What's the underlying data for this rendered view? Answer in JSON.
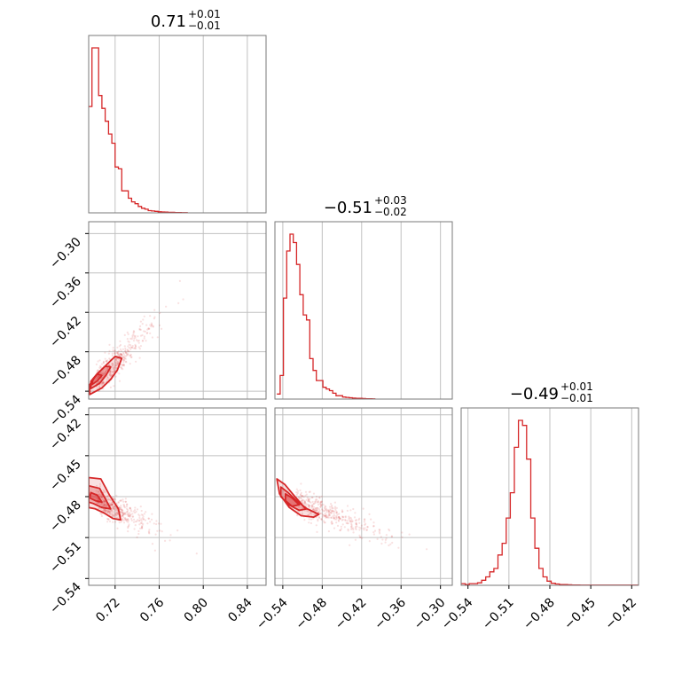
{
  "chart_data": {
    "type": "corner",
    "color": "#d62728",
    "grid": true,
    "params": [
      {
        "title_main": "0.71",
        "title_sup": "+0.01",
        "title_sub": "−0.01",
        "range": [
          0.696,
          0.857
        ],
        "ticks": [
          0.72,
          0.76,
          0.8,
          0.84
        ],
        "tick_labels": [
          "0.72",
          "0.76",
          "0.80",
          "0.84"
        ],
        "hist": {
          "edges_start": 0.696,
          "bin_width": 0.003,
          "counts": [
            0.58,
            0.9,
            0.9,
            0.64,
            0.57,
            0.5,
            0.43,
            0.38,
            0.25,
            0.24,
            0.12,
            0.12,
            0.08,
            0.06,
            0.05,
            0.035,
            0.025,
            0.02,
            0.012,
            0.01,
            0.008,
            0.006,
            0.005,
            0.004,
            0.003,
            0.003,
            0.002,
            0.002,
            0.001,
            0.001
          ]
        }
      },
      {
        "title_main": "−0.51",
        "title_sup": "+0.03",
        "title_sub": "−0.02",
        "range": [
          -0.552,
          -0.282
        ],
        "ticks": [
          -0.54,
          -0.48,
          -0.42,
          -0.36,
          -0.3
        ],
        "tick_labels": [
          "−0.54",
          "−0.48",
          "−0.42",
          "−0.36",
          "−0.30"
        ],
        "hist": {
          "edges_start": -0.549,
          "bin_width": 0.005,
          "counts": [
            0.03,
            0.14,
            0.6,
            0.88,
            0.98,
            0.93,
            0.8,
            0.62,
            0.5,
            0.47,
            0.24,
            0.17,
            0.11,
            0.11,
            0.07,
            0.06,
            0.05,
            0.035,
            0.02,
            0.02,
            0.012,
            0.01,
            0.008,
            0.006,
            0.005,
            0.004,
            0.003,
            0.002,
            0.002,
            0.001
          ]
        }
      },
      {
        "title_main": "−0.49",
        "title_sup": "+0.01",
        "title_sub": "−0.01",
        "range": [
          -0.545,
          -0.415
        ],
        "ticks": [
          -0.54,
          -0.51,
          -0.48,
          -0.45,
          -0.42
        ],
        "tick_labels": [
          "−0.54",
          "−0.51",
          "−0.48",
          "−0.45",
          "−0.42"
        ],
        "hist": {
          "edges_start": -0.545,
          "bin_width": 0.003,
          "counts": [
            0.01,
            0.005,
            0.01,
            0.01,
            0.015,
            0.03,
            0.05,
            0.08,
            0.1,
            0.18,
            0.25,
            0.4,
            0.55,
            0.82,
            0.98,
            0.95,
            0.75,
            0.4,
            0.22,
            0.1,
            0.05,
            0.025,
            0.012,
            0.008,
            0.005,
            0.004,
            0.003,
            0.002,
            0.002,
            0.001,
            0.001,
            0.001,
            0.001,
            0.001,
            0.001,
            0.001,
            0.001,
            0.001,
            0.001,
            0.001,
            0.001,
            0.001,
            0.001,
            0.001
          ]
        }
      }
    ],
    "pairs": [
      {
        "row": 1,
        "col": 0,
        "center": [
          0.703,
          -0.525
        ],
        "scatter_spread": [
          [
            0.695,
            0.772
          ],
          [
            -0.545,
            -0.4
          ]
        ],
        "contour_levels": [
          [
            [
              0.697,
              -0.545
            ],
            [
              0.708,
              -0.535
            ],
            [
              0.716,
              -0.522
            ],
            [
              0.722,
              -0.508
            ],
            [
              0.726,
              -0.49
            ],
            [
              0.72,
              -0.487
            ],
            [
              0.712,
              -0.5
            ],
            [
              0.703,
              -0.515
            ],
            [
              0.697,
              -0.53
            ]
          ],
          [
            [
              0.698,
              -0.536
            ],
            [
              0.706,
              -0.528
            ],
            [
              0.712,
              -0.515
            ],
            [
              0.716,
              -0.503
            ],
            [
              0.711,
              -0.502
            ],
            [
              0.704,
              -0.513
            ],
            [
              0.698,
              -0.525
            ]
          ],
          [
            [
              0.699,
              -0.53
            ],
            [
              0.704,
              -0.524
            ],
            [
              0.708,
              -0.516
            ],
            [
              0.704,
              -0.514
            ],
            [
              0.7,
              -0.521
            ]
          ]
        ]
      },
      {
        "row": 2,
        "col": 0,
        "center": [
          0.703,
          -0.482
        ],
        "scatter_spread": [
          [
            0.695,
            0.77
          ],
          [
            -0.513,
            -0.455
          ]
        ],
        "contour_levels": [
          [
            [
              0.696,
              -0.466
            ],
            [
              0.707,
              -0.467
            ],
            [
              0.715,
              -0.479
            ],
            [
              0.723,
              -0.489
            ],
            [
              0.725,
              -0.497
            ],
            [
              0.718,
              -0.496
            ],
            [
              0.71,
              -0.492
            ],
            [
              0.702,
              -0.489
            ],
            [
              0.696,
              -0.488
            ]
          ],
          [
            [
              0.696,
              -0.472
            ],
            [
              0.706,
              -0.474
            ],
            [
              0.712,
              -0.483
            ],
            [
              0.716,
              -0.489
            ],
            [
              0.708,
              -0.488
            ],
            [
              0.7,
              -0.485
            ],
            [
              0.696,
              -0.484
            ]
          ],
          [
            [
              0.698,
              -0.477
            ],
            [
              0.704,
              -0.479
            ],
            [
              0.708,
              -0.484
            ],
            [
              0.702,
              -0.483
            ],
            [
              0.697,
              -0.481
            ]
          ]
        ]
      },
      {
        "row": 2,
        "col": 1,
        "center": [
          -0.52,
          -0.483
        ],
        "scatter_spread": [
          [
            -0.552,
            -0.36
          ],
          [
            -0.52,
            -0.458
          ]
        ],
        "contour_levels": [
          [
            [
              -0.549,
              -0.467
            ],
            [
              -0.537,
              -0.471
            ],
            [
              -0.525,
              -0.478
            ],
            [
              -0.507,
              -0.488
            ],
            [
              -0.485,
              -0.493
            ],
            [
              -0.493,
              -0.495
            ],
            [
              -0.512,
              -0.494
            ],
            [
              -0.53,
              -0.488
            ],
            [
              -0.545,
              -0.478
            ]
          ],
          [
            [
              -0.543,
              -0.473
            ],
            [
              -0.532,
              -0.477
            ],
            [
              -0.519,
              -0.483
            ],
            [
              -0.503,
              -0.489
            ],
            [
              -0.515,
              -0.49
            ],
            [
              -0.531,
              -0.486
            ],
            [
              -0.543,
              -0.48
            ]
          ],
          [
            [
              -0.536,
              -0.478
            ],
            [
              -0.526,
              -0.481
            ],
            [
              -0.515,
              -0.486
            ],
            [
              -0.526,
              -0.487
            ],
            [
              -0.536,
              -0.483
            ]
          ]
        ]
      }
    ]
  }
}
